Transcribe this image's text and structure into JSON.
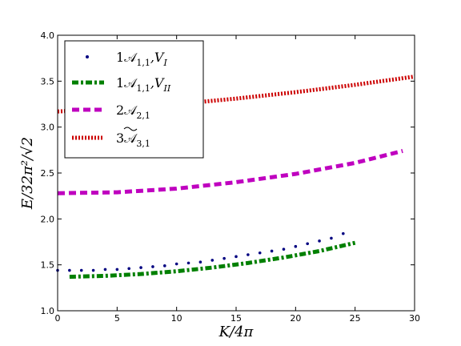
{
  "chart_data": {
    "type": "scatter",
    "title": "",
    "xlabel": "K/4π",
    "ylabel": "E/32π²/√2",
    "xlim": [
      0,
      30
    ],
    "ylim": [
      1.0,
      4.0
    ],
    "x_ticks": [
      "0",
      "5",
      "10",
      "15",
      "20",
      "25",
      "30"
    ],
    "y_ticks": [
      "1.0",
      "1.5",
      "2.0",
      "2.5",
      "3.0",
      "3.5",
      "4.0"
    ],
    "grid": false,
    "legend_position": "top-left",
    "series": [
      {
        "name": "1𝒜1,1,VI",
        "label_main": "1𝒜",
        "label_sub": "1,1",
        "label_extra": ",V",
        "label_extra_sub": "I",
        "style": "dots",
        "color": "#000080",
        "x": [
          0,
          1,
          2,
          3,
          4,
          5,
          6,
          7,
          8,
          9,
          10,
          11,
          12,
          13,
          14,
          15,
          16,
          17,
          18,
          19,
          20,
          21,
          22,
          23,
          24
        ],
        "y": [
          1.44,
          1.44,
          1.44,
          1.44,
          1.45,
          1.45,
          1.46,
          1.47,
          1.48,
          1.49,
          1.51,
          1.52,
          1.53,
          1.55,
          1.57,
          1.59,
          1.61,
          1.63,
          1.65,
          1.67,
          1.7,
          1.73,
          1.76,
          1.79,
          1.84
        ]
      },
      {
        "name": "1𝒜1,1,VII",
        "label_main": "1𝒜",
        "label_sub": "1,1",
        "label_extra": ",V",
        "label_extra_sub": "II",
        "style": "dashdot",
        "color": "#008000",
        "x": [
          1,
          25
        ],
        "y": [
          1.37,
          1.74
        ],
        "curve_x": [
          1,
          4,
          7,
          10,
          13,
          16,
          19,
          22,
          25
        ],
        "curve_y": [
          1.37,
          1.38,
          1.4,
          1.43,
          1.47,
          1.52,
          1.58,
          1.65,
          1.74
        ]
      },
      {
        "name": "2𝒜2,1",
        "label_main": "2𝒜",
        "label_sub": "2,1",
        "label_extra": "",
        "label_extra_sub": "",
        "style": "dashed",
        "color": "#bf00bf",
        "x": [
          0,
          5,
          10,
          15,
          20,
          25,
          29
        ],
        "y": [
          2.28,
          2.29,
          2.33,
          2.4,
          2.49,
          2.61,
          2.74
        ]
      },
      {
        "name": "3𝒜̃3,1",
        "label_main": "3𝒜",
        "label_sub": "3,1",
        "label_extra": "",
        "label_extra_sub": "",
        "tilde": true,
        "style": "dotted",
        "color": "#cc0000",
        "x": [
          0,
          5,
          10,
          15,
          20,
          25,
          30
        ],
        "y": [
          3.17,
          3.2,
          3.25,
          3.31,
          3.38,
          3.46,
          3.55
        ]
      }
    ]
  }
}
